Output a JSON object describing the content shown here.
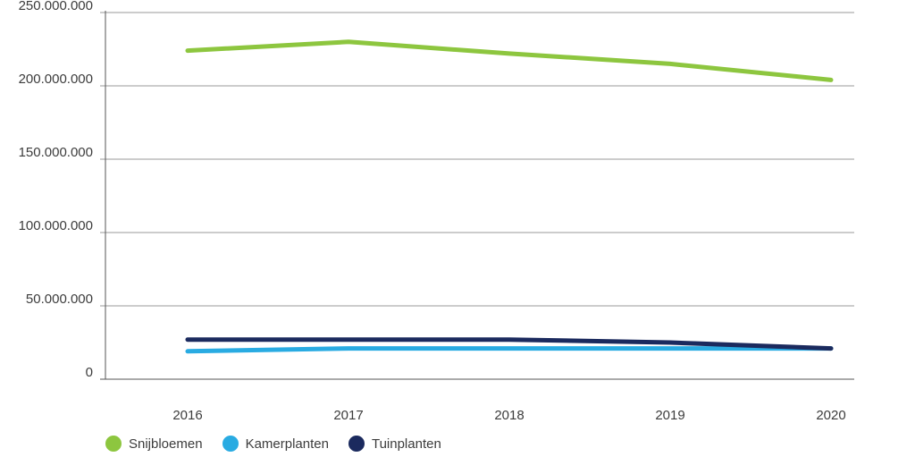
{
  "chart_data": {
    "type": "line",
    "title": "",
    "xlabel": "",
    "ylabel": "",
    "categories": [
      "2016",
      "2017",
      "2018",
      "2019",
      "2020"
    ],
    "ylim": [
      0,
      250000000
    ],
    "yticks": [
      0,
      50000000,
      100000000,
      150000000,
      200000000,
      250000000
    ],
    "ytick_labels": [
      "0",
      "50.000.000",
      "100.000.000",
      "150.000.000",
      "200.000.000",
      "250.000.000"
    ],
    "grid": "horizontal",
    "legend_position": "bottom-left",
    "series": [
      {
        "name": "Snijbloemen",
        "color": "#8dc63f",
        "values": [
          224000000,
          230000000,
          222000000,
          215000000,
          204000000
        ]
      },
      {
        "name": "Kamerplanten",
        "color": "#29abe2",
        "values": [
          19000000,
          21000000,
          21000000,
          21000000,
          21000000
        ]
      },
      {
        "name": "Tuinplanten",
        "color": "#1b2a5e",
        "values": [
          27000000,
          27000000,
          27000000,
          25000000,
          21000000
        ]
      }
    ]
  }
}
